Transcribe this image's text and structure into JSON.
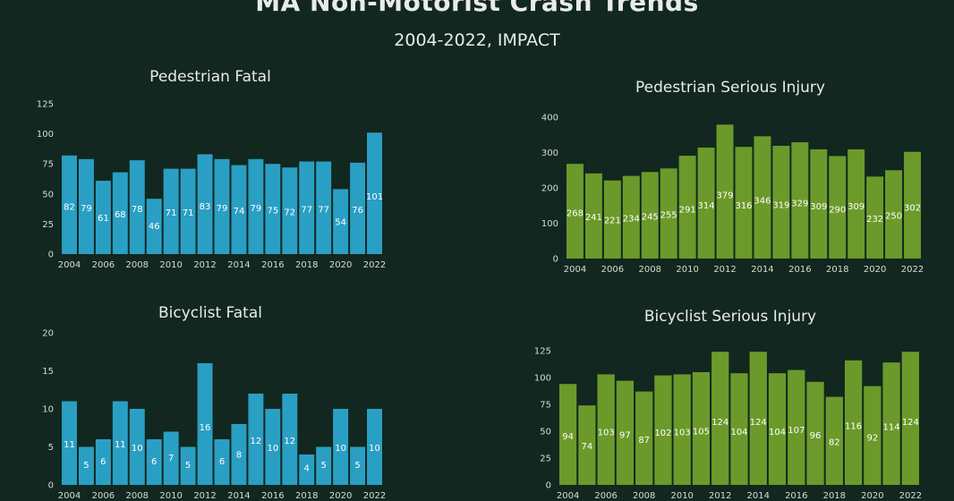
{
  "title": "MA Non-Motorist Crash Trends",
  "subtitle": "2004-2022, IMPACT",
  "chart_data": [
    {
      "type": "bar",
      "title": "Pedestrian Fatal",
      "color": "#2a9fc4",
      "categories": [
        "2004",
        "2005",
        "2006",
        "2007",
        "2008",
        "2009",
        "2010",
        "2011",
        "2012",
        "2013",
        "2014",
        "2015",
        "2016",
        "2017",
        "2018",
        "2019",
        "2020",
        "2021",
        "2022"
      ],
      "values": [
        82,
        79,
        61,
        68,
        78,
        46,
        71,
        71,
        83,
        79,
        74,
        79,
        75,
        72,
        77,
        77,
        54,
        76,
        101
      ],
      "ylim": [
        0,
        125
      ],
      "yticks": [
        0,
        25,
        50,
        75,
        100,
        125
      ],
      "xtick_labels": [
        "2004",
        "2006",
        "2008",
        "2010",
        "2012",
        "2014",
        "2016",
        "2018",
        "2020",
        "2022"
      ]
    },
    {
      "type": "bar",
      "title": "Pedestrian Serious Injury",
      "color": "#6b9a2a",
      "categories": [
        "2004",
        "2005",
        "2006",
        "2007",
        "2008",
        "2009",
        "2010",
        "2011",
        "2012",
        "2013",
        "2014",
        "2015",
        "2016",
        "2017",
        "2018",
        "2019",
        "2020",
        "2021",
        "2022"
      ],
      "values": [
        268,
        241,
        221,
        234,
        245,
        255,
        291,
        314,
        379,
        316,
        346,
        319,
        329,
        309,
        290,
        309,
        232,
        250,
        302
      ],
      "ylim": [
        0,
        400
      ],
      "yticks": [
        0,
        100,
        200,
        300,
        400
      ],
      "xtick_labels": [
        "2004",
        "2006",
        "2008",
        "2010",
        "2012",
        "2014",
        "2016",
        "2018",
        "2020",
        "2022"
      ]
    },
    {
      "type": "bar",
      "title": "Bicyclist Fatal",
      "color": "#2a9fc4",
      "categories": [
        "2004",
        "2005",
        "2006",
        "2007",
        "2008",
        "2009",
        "2010",
        "2011",
        "2012",
        "2013",
        "2014",
        "2015",
        "2016",
        "2017",
        "2018",
        "2019",
        "2020",
        "2021",
        "2022"
      ],
      "values": [
        11,
        5,
        6,
        11,
        10,
        6,
        7,
        5,
        16,
        6,
        8,
        12,
        10,
        12,
        4,
        5,
        10,
        5,
        10
      ],
      "ylim": [
        0,
        20
      ],
      "yticks": [
        0,
        5,
        10,
        15,
        20
      ],
      "xtick_labels": [
        "2004",
        "2006",
        "2008",
        "2010",
        "2012",
        "2014",
        "2016",
        "2018",
        "2020",
        "2022"
      ]
    },
    {
      "type": "bar",
      "title": "Bicyclist Serious Injury",
      "color": "#6b9a2a",
      "categories": [
        "2004",
        "2005",
        "2006",
        "2007",
        "2008",
        "2009",
        "2010",
        "2011",
        "2012",
        "2013",
        "2014",
        "2015",
        "2016",
        "2017",
        "2018",
        "2019",
        "2020",
        "2021",
        "2022"
      ],
      "values": [
        94,
        74,
        103,
        97,
        87,
        102,
        103,
        105,
        124,
        104,
        124,
        104,
        107,
        96,
        82,
        116,
        92,
        114,
        124
      ],
      "ylim": [
        0,
        125
      ],
      "yticks": [
        0,
        25,
        50,
        75,
        100,
        125
      ],
      "xtick_labels": [
        "2004",
        "2006",
        "2008",
        "2010",
        "2012",
        "2014",
        "2016",
        "2018",
        "2020",
        "2022"
      ]
    }
  ]
}
